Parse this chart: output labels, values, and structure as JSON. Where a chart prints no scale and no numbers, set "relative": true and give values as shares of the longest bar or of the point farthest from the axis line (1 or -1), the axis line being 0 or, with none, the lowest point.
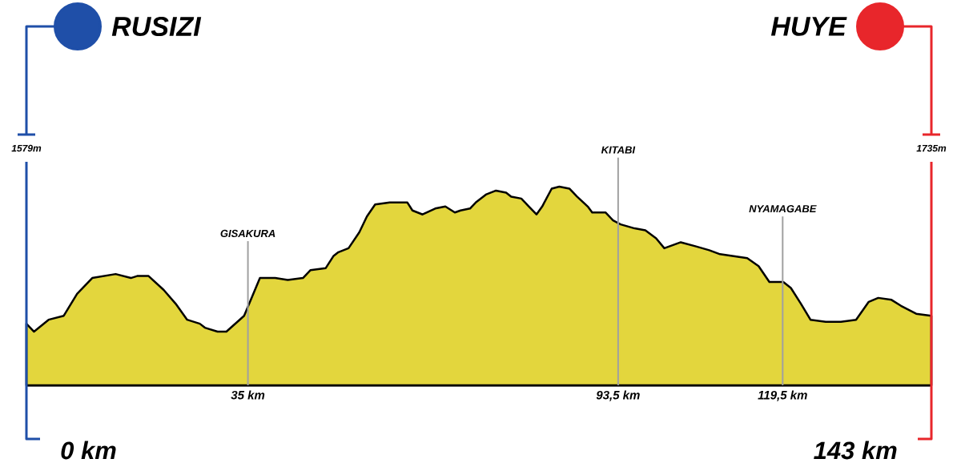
{
  "chart_data": {
    "type": "area",
    "relative": true,
    "x": [
      0,
      1.2,
      3.5,
      5.9,
      8.0,
      10.4,
      14.1,
      16.5,
      17.5,
      19.3,
      21.7,
      23.6,
      25.4,
      27.4,
      28.2,
      30.2,
      31.6,
      34.4,
      36.9,
      39.3,
      41.3,
      43.7,
      44.9,
      47.3,
      48.5,
      49.3,
      50.9,
      52.6,
      53.8,
      55.1,
      57.4,
      60.2,
      61.0,
      62.6,
      64.6,
      66.2,
      67.7,
      68.6,
      70.1,
      71.0,
      72.6,
      74.2,
      75.8,
      76.6,
      78.2,
      79.4,
      80.6,
      81.5,
      83.0,
      84.2,
      85.8,
      87.0,
      88.7,
      89.4,
      91.5,
      92.7,
      93.9,
      96.1,
      97.8,
      99.5,
      100.8,
      103.4,
      105.7,
      107.9,
      109.6,
      113.9,
      115.7,
      117.4,
      119.6,
      120.8,
      122.4,
      123.9,
      126.3,
      128.7,
      131.1,
      133.1,
      134.6,
      136.7,
      138.2,
      140.6,
      143
    ],
    "series": [
      {
        "color": "#e3d63d",
        "values": [
          0.31,
          0.27,
          0.33,
          0.35,
          0.46,
          0.54,
          0.56,
          0.54,
          0.55,
          0.55,
          0.48,
          0.41,
          0.33,
          0.31,
          0.29,
          0.27,
          0.27,
          0.35,
          0.54,
          0.54,
          0.53,
          0.54,
          0.58,
          0.59,
          0.65,
          0.67,
          0.69,
          0.77,
          0.85,
          0.91,
          0.92,
          0.92,
          0.88,
          0.86,
          0.89,
          0.9,
          0.87,
          0.88,
          0.89,
          0.92,
          0.96,
          0.98,
          0.97,
          0.95,
          0.94,
          0.9,
          0.86,
          0.9,
          0.99,
          1.0,
          0.99,
          0.95,
          0.9,
          0.87,
          0.87,
          0.83,
          0.81,
          0.79,
          0.78,
          0.74,
          0.69,
          0.72,
          0.7,
          0.68,
          0.66,
          0.64,
          0.6,
          0.52,
          0.52,
          0.49,
          0.41,
          0.33,
          0.32,
          0.32,
          0.33,
          0.42,
          0.44,
          0.43,
          0.4,
          0.36,
          0.35
        ]
      }
    ],
    "xlim": [
      0,
      143
    ],
    "xticks": [
      {
        "value": 35,
        "label": "35 km"
      },
      {
        "value": 93.5,
        "label": "93,5 km"
      },
      {
        "value": 119.5,
        "label": "119,5 km"
      }
    ],
    "ref_lines": [
      {
        "axis": "x",
        "value": 0,
        "label": "RUSIZI",
        "color": "#1f4fa8"
      },
      {
        "axis": "x",
        "value": 35,
        "label": "GISAKURA",
        "color": "#a0a0a0"
      },
      {
        "axis": "x",
        "value": 93.5,
        "label": "KITABI",
        "color": "#a0a0a0"
      },
      {
        "axis": "x",
        "value": 119.5,
        "label": "NYAMAGABE",
        "color": "#a0a0a0"
      },
      {
        "axis": "x",
        "value": 143,
        "label": "HUYE",
        "color": "#e8262b"
      }
    ],
    "legend": "top",
    "annotations": [
      "1579m",
      "1735m",
      "0 km",
      "143 km"
    ]
  }
}
